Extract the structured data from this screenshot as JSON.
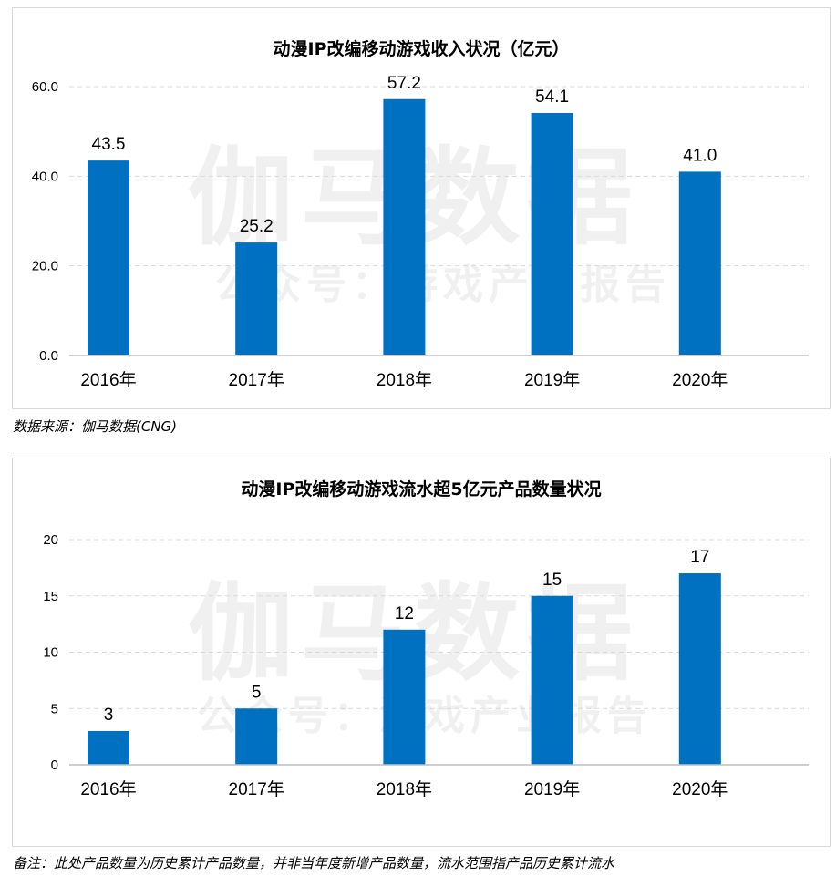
{
  "watermark": {
    "main": "伽马数据",
    "sub": "公众号：游戏产业报告"
  },
  "charts": {
    "revenue": {
      "title": "动漫IP改编移动游戏收入状况（亿元）",
      "source": "数据来源：伽马数据(CNG)"
    },
    "count": {
      "title": "动漫IP改编移动游戏流水超5亿元产品数量状况",
      "note": "备注：此处产品数量为历史累计产品数量，并非当年度新增产品数量，流水范围指产品历史累计流水"
    }
  },
  "colors": {
    "bar": "#0070C0",
    "grid": "#d9d9d9",
    "axis": "#bfbfbf"
  },
  "chart_data": [
    {
      "type": "bar",
      "title": "动漫IP改编移动游戏收入状况（亿元）",
      "categories": [
        "2016年",
        "2017年",
        "2018年",
        "2019年",
        "2020年"
      ],
      "values": [
        43.5,
        25.2,
        57.2,
        54.1,
        41.0
      ],
      "labels": [
        "43.5",
        "25.2",
        "57.2",
        "54.1",
        "41.0"
      ],
      "yticks": [
        "0.0",
        "20.0",
        "40.0",
        "60.0"
      ],
      "ylim": [
        0,
        60
      ],
      "grid": true,
      "legend": "none"
    },
    {
      "type": "bar",
      "title": "动漫IP改编移动游戏流水超5亿元产品数量状况",
      "categories": [
        "2016年",
        "2017年",
        "2018年",
        "2019年",
        "2020年"
      ],
      "values": [
        3,
        5,
        12,
        15,
        17
      ],
      "labels": [
        "3",
        "5",
        "12",
        "15",
        "17"
      ],
      "yticks": [
        "0",
        "5",
        "10",
        "15",
        "20"
      ],
      "ylim": [
        0,
        20
      ],
      "grid": true,
      "legend": "none"
    }
  ]
}
